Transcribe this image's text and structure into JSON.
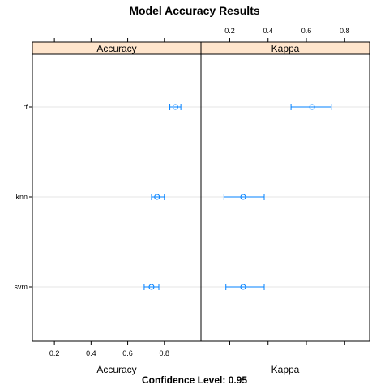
{
  "chart_data": {
    "type": "dotplot",
    "title": "Model Accuracy Results",
    "footer": "Confidence Level: 0.95",
    "categories": [
      "rf",
      "knn",
      "svm"
    ],
    "panels": [
      {
        "name": "Accuracy",
        "xlabel": "Accuracy",
        "xlim": [
          0.08,
          1.0
        ],
        "ticks": [
          0.2,
          0.4,
          0.6,
          0.8
        ],
        "tick_labels": [
          "0.2",
          "0.4",
          "0.6",
          "0.8"
        ],
        "tick_side": "bottom",
        "points": [
          {
            "model": "rf",
            "estimate": 0.86,
            "lower": 0.83,
            "upper": 0.89
          },
          {
            "model": "knn",
            "estimate": 0.76,
            "lower": 0.73,
            "upper": 0.8
          },
          {
            "model": "svm",
            "estimate": 0.73,
            "lower": 0.69,
            "upper": 0.77
          }
        ]
      },
      {
        "name": "Kappa",
        "xlabel": "Kappa",
        "xlim": [
          0.05,
          0.93
        ],
        "ticks": [
          0.2,
          0.4,
          0.6,
          0.8
        ],
        "tick_labels": [
          "0.2",
          "0.4",
          "0.6",
          "0.8"
        ],
        "tick_side": "top",
        "points": [
          {
            "model": "rf",
            "estimate": 0.63,
            "lower": 0.52,
            "upper": 0.73
          },
          {
            "model": "knn",
            "estimate": 0.27,
            "lower": 0.17,
            "upper": 0.38
          },
          {
            "model": "svm",
            "estimate": 0.27,
            "lower": 0.18,
            "upper": 0.38
          }
        ]
      }
    ],
    "colors": {
      "strip_bg": "#ffe5cc",
      "point": "#0080ff",
      "gridline": "#e6e6e6",
      "frame": "#000000"
    },
    "grid": "horizontal-reference-lines",
    "legend": "none"
  }
}
